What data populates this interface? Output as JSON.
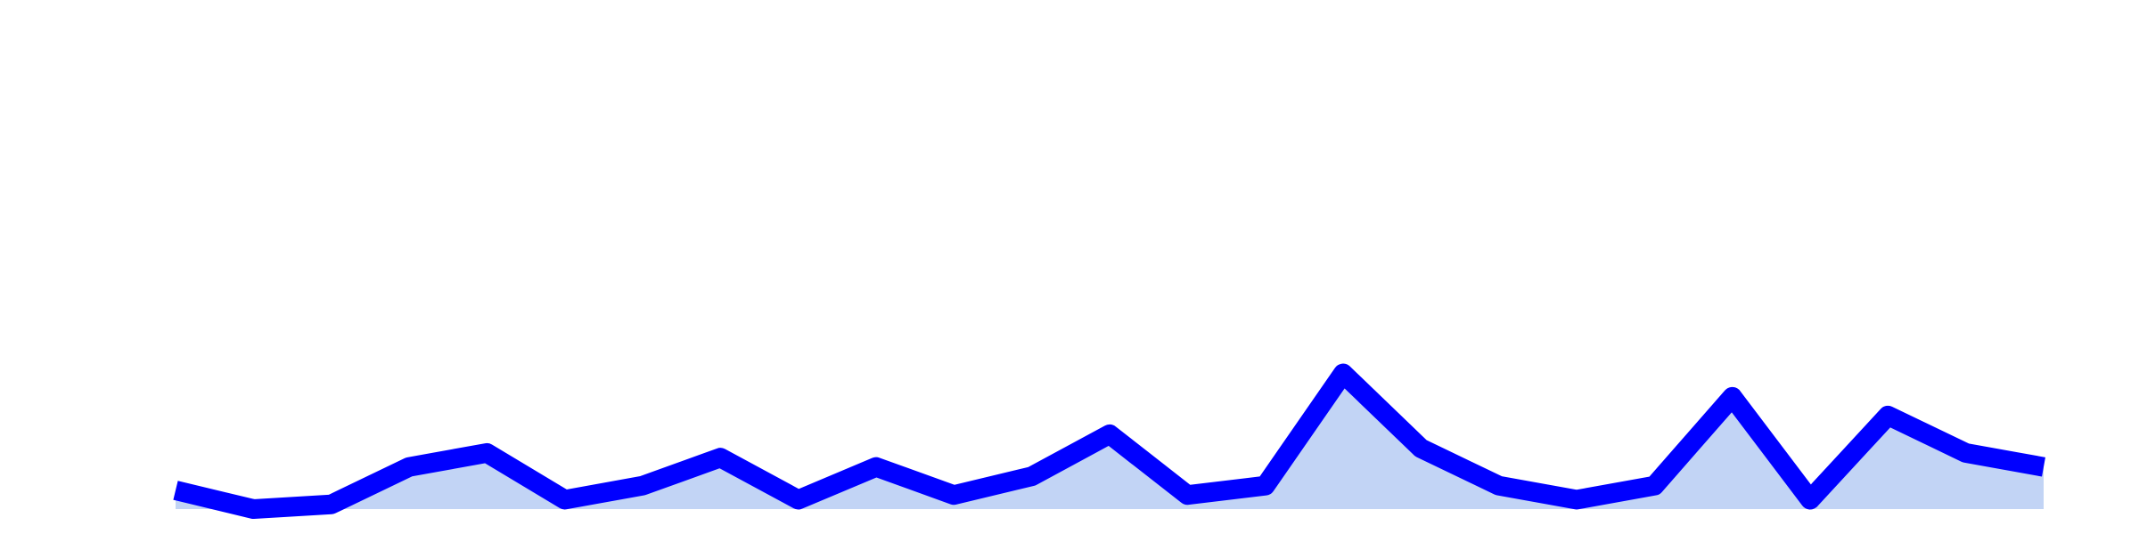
{
  "chart_data": {
    "type": "area",
    "x": [
      1,
      2,
      3,
      4,
      5,
      6,
      7,
      8,
      9,
      10,
      11,
      12,
      13,
      14,
      15,
      16,
      17,
      18,
      19,
      20,
      21,
      22,
      23,
      24,
      25
    ],
    "values": [
      4,
      0,
      1,
      9,
      12,
      2,
      5,
      11,
      2,
      9,
      3,
      7,
      16,
      3,
      5,
      29,
      13,
      5,
      2,
      5,
      24,
      2,
      20,
      12,
      9
    ],
    "ylim": [
      0,
      105
    ],
    "grid": false,
    "colors": {
      "line": "#0000ff",
      "fill": "#c2d4f5"
    }
  }
}
